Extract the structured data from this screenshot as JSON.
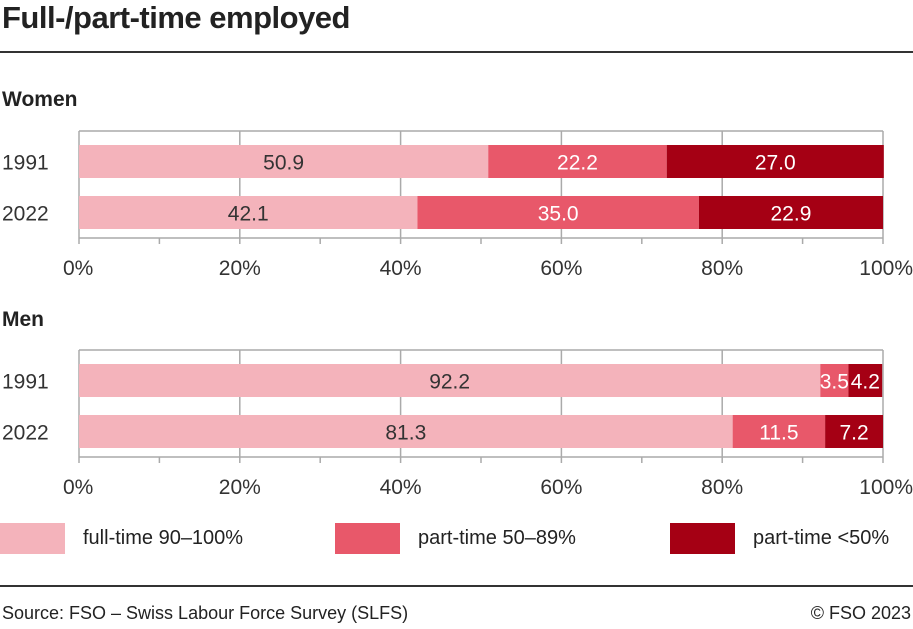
{
  "title": "Full-/part-time employed",
  "source": "Source: FSO – Swiss Labour Force Survey (SLFS)",
  "copyright": "© FSO 2023",
  "colors": {
    "full": "#f4b3bb",
    "part50": "#e8586a",
    "part_lt50": "#a50014"
  },
  "chart_data": {
    "type": "bar",
    "orientation": "horizontal",
    "stacked": true,
    "xlim": [
      0,
      100
    ],
    "x_ticks": [
      "0%",
      "20%",
      "40%",
      "60%",
      "80%",
      "100%"
    ],
    "grid": true,
    "legend_placement": "bottom",
    "legend": [
      "full-time 90–100%",
      "part-time 50–89%",
      "part-time <50%"
    ],
    "panels": [
      {
        "title": "Women",
        "categories": [
          "1991",
          "2022"
        ],
        "series": [
          {
            "name": "full-time 90–100%",
            "values": [
              50.9,
              42.1
            ]
          },
          {
            "name": "part-time 50–89%",
            "values": [
              22.2,
              35.0
            ]
          },
          {
            "name": "part-time <50%",
            "values": [
              27.0,
              22.9
            ]
          }
        ]
      },
      {
        "title": "Men",
        "categories": [
          "1991",
          "2022"
        ],
        "series": [
          {
            "name": "full-time 90–100%",
            "values": [
              92.2,
              81.3
            ]
          },
          {
            "name": "part-time 50–89%",
            "values": [
              3.5,
              11.5
            ]
          },
          {
            "name": "part-time <50%",
            "values": [
              4.2,
              7.2
            ]
          }
        ]
      }
    ]
  }
}
